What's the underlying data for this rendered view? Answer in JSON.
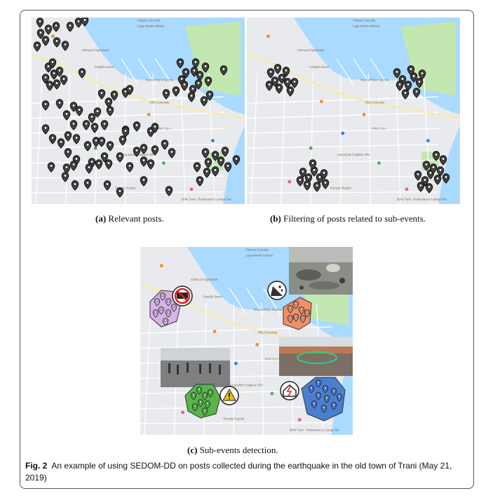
{
  "panels": {
    "a": {
      "letter": "(a)",
      "caption": "Relevant posts."
    },
    "b": {
      "letter": "(b)",
      "caption": "Filtering of posts related to sub-events."
    },
    "c": {
      "letter": "(c)",
      "caption": "Sub-events detection."
    }
  },
  "figure": {
    "label": "Fig. 2",
    "caption": "An example of using SEDOM-DD on posts collected during the earthquake in the old town of Trani (May 21, 2019)"
  },
  "map_labels": {
    "palazzo": "Palazzo Caccetta",
    "lega": "Lega Navale Italiana",
    "ognissanti": "Chiesa di Ognissanti",
    "trani": "Castello Svevo",
    "piazza": "Piazza Pietro Sarcina",
    "villa": "Villa Comunale",
    "lucchia": "Piazza della Libertà",
    "amalfi": "Amet S.p.A",
    "acquedotto": "Acquedotto Pugliese SPA",
    "pizzeria": "Pizzeria Tiepolo",
    "chiuso": "Bello Tranì - Restaurant & Lounge Bar"
  },
  "icon_colors": {
    "purple": "#d7b3e8",
    "orange": "#f0906a",
    "green": "#57b54a",
    "blue": "#4a7fd0"
  }
}
